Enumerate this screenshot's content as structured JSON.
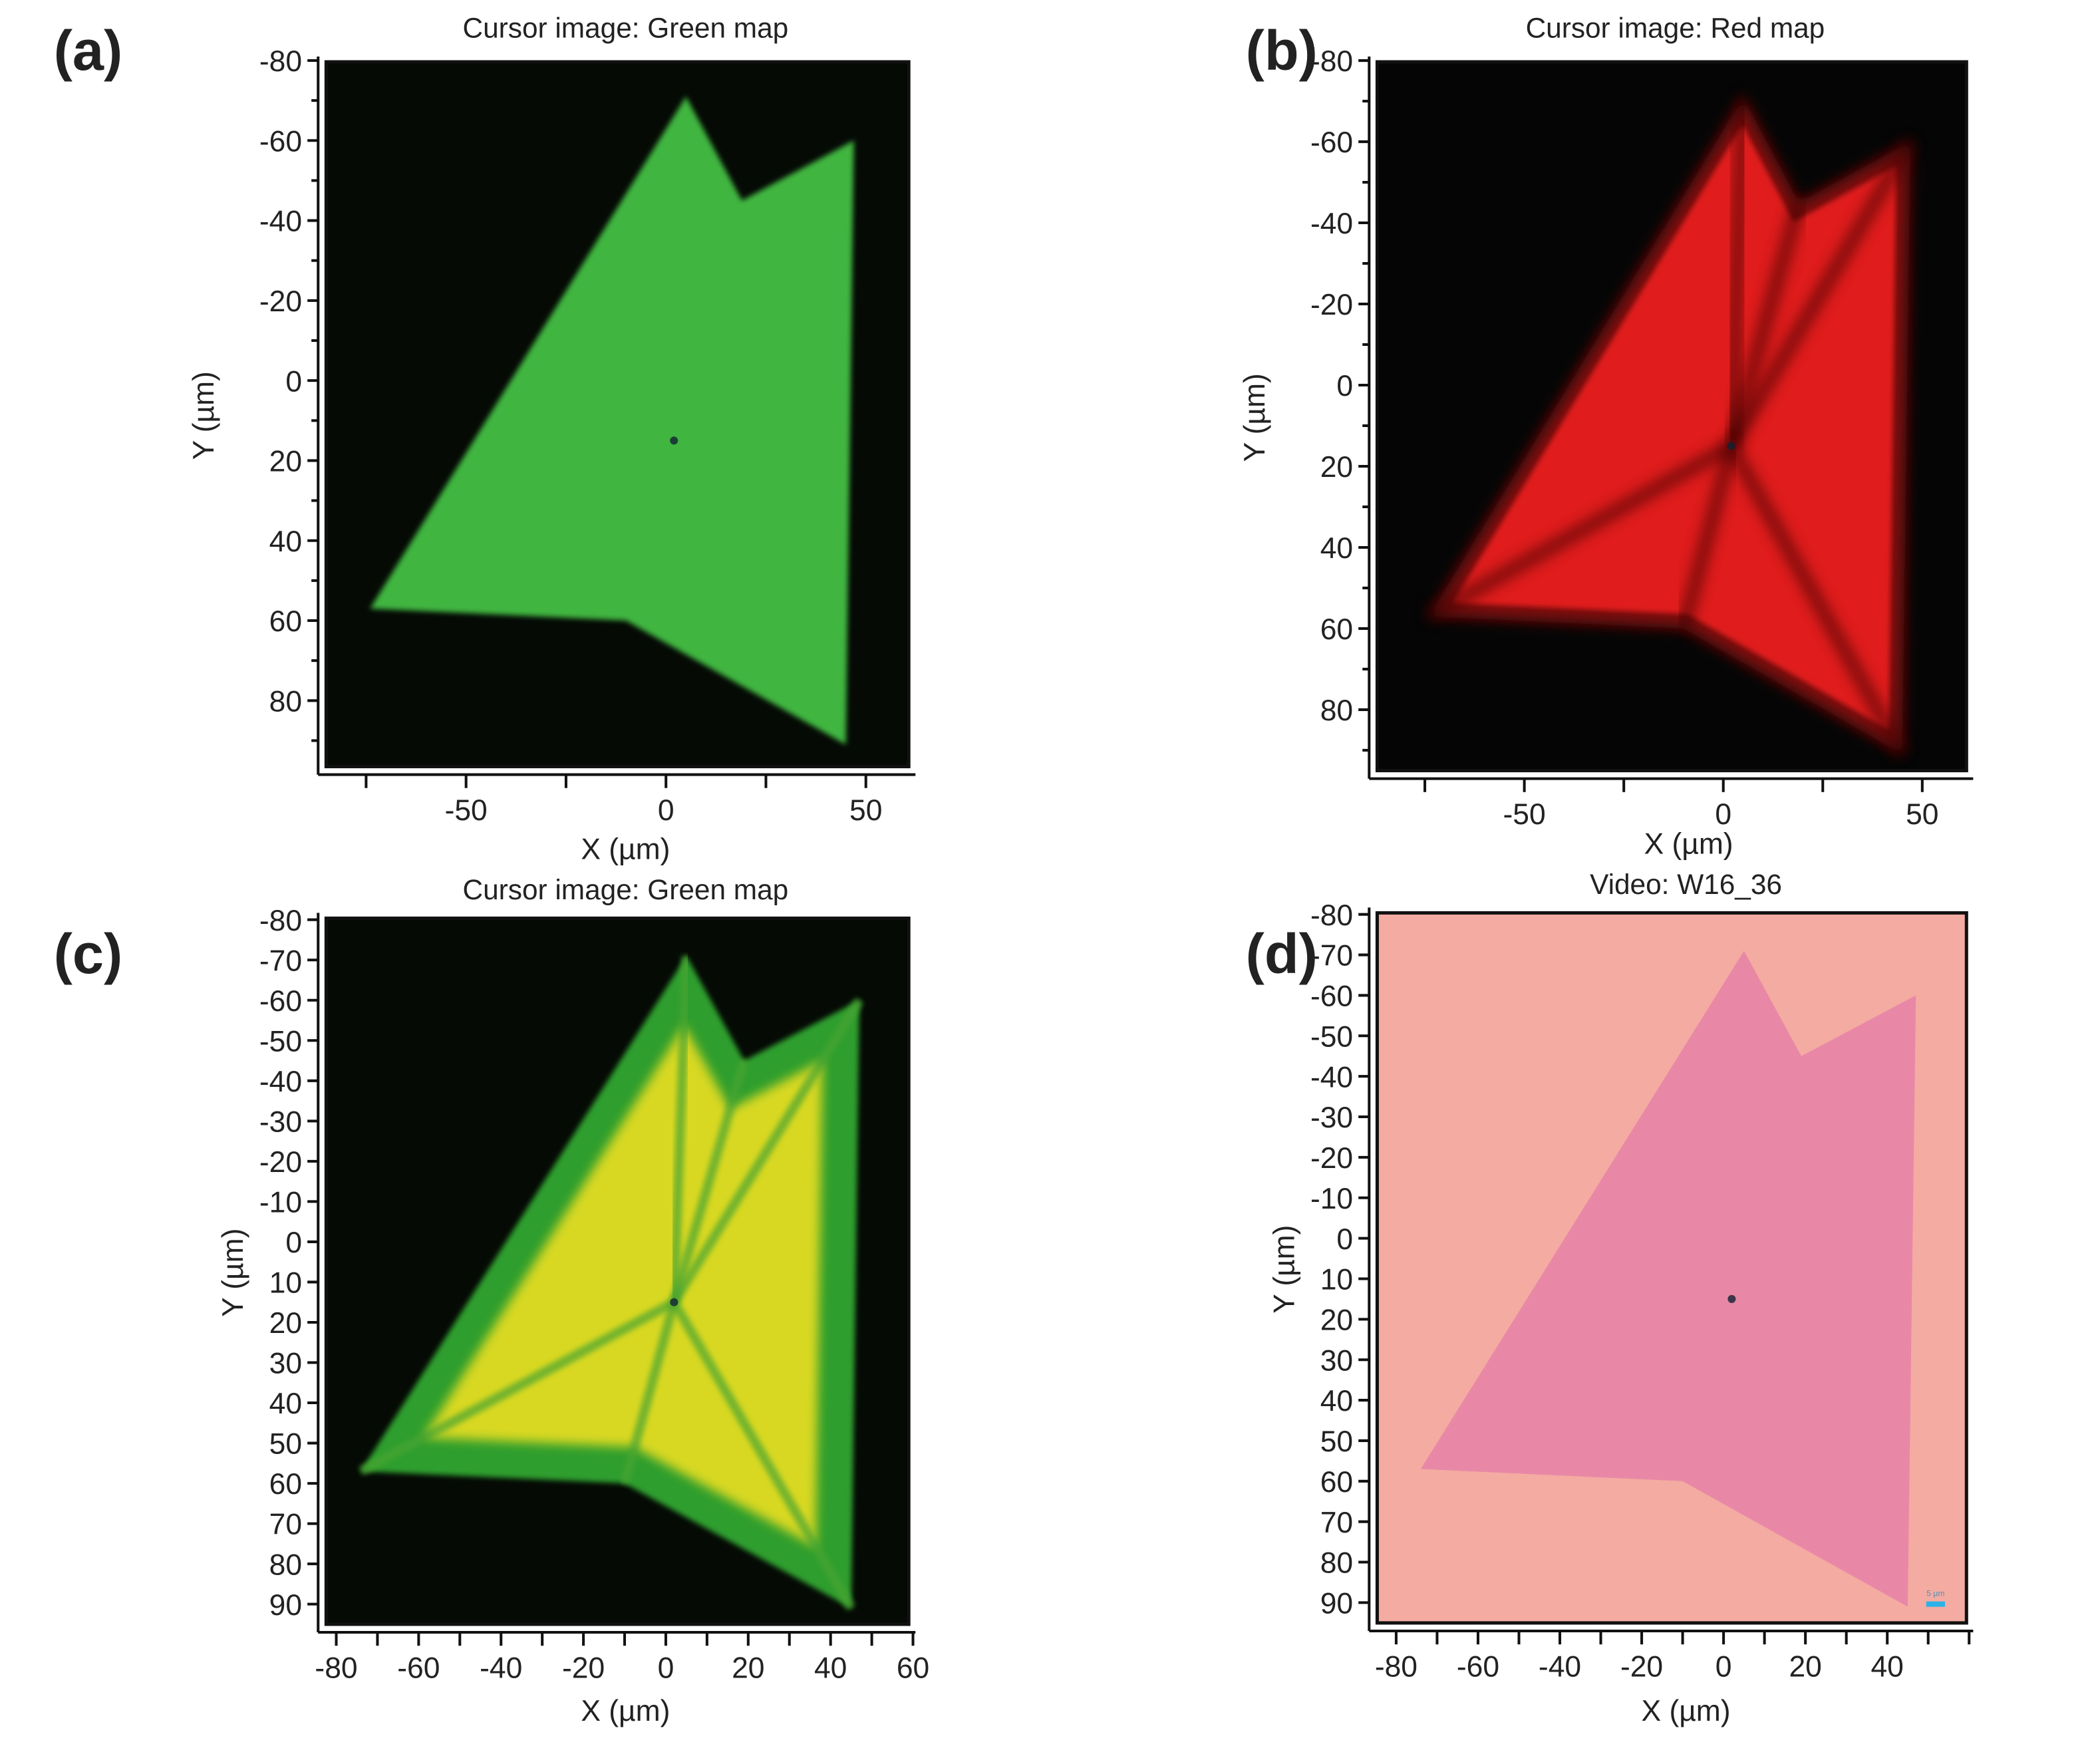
{
  "chart_data": [
    {
      "id": "a",
      "type": "image-map",
      "panel_label": "(a)",
      "title": "Cursor image: Green map",
      "xlabel": "X (µm)",
      "ylabel": "Y (µm)",
      "xlim": [
        -87,
        62.4
      ],
      "ylim": [
        -81,
        98.5
      ],
      "xticks_major": [
        -50,
        0,
        50
      ],
      "xticks_minor_step": 25,
      "yticks_major": [
        -80,
        -60,
        -40,
        -20,
        0,
        20,
        40,
        60,
        80
      ],
      "yticks_minor_step": 10,
      "style": "green",
      "background": "#050a05",
      "fill": "#3fb53f"
    },
    {
      "id": "b",
      "type": "image-map",
      "panel_label": "(b)",
      "title": "Cursor image: Red map",
      "xlabel": "X (µm)",
      "ylabel": "Y (µm)",
      "xlim": [
        -89,
        62.8
      ],
      "ylim": [
        -81,
        97
      ],
      "xticks_major": [
        -50,
        0,
        50
      ],
      "xticks_minor_step": 25,
      "yticks_major": [
        -80,
        -60,
        -40,
        -20,
        0,
        20,
        40,
        60,
        80
      ],
      "yticks_minor_step": 10,
      "style": "red",
      "background": "#050505",
      "fill": "#e01c1c"
    },
    {
      "id": "c",
      "type": "image-map",
      "panel_label": "(c)",
      "title": "Cursor image: Green map",
      "xlabel": "X (µm)",
      "ylabel": "Y (µm)",
      "xlim": [
        -84.4,
        60.6
      ],
      "ylim": [
        -81.7,
        97
      ],
      "xticks_major": [
        -80,
        -60,
        -40,
        -20,
        0,
        20,
        40,
        60
      ],
      "xticks_minor_step": 10,
      "yticks_major": [
        -80,
        -70,
        -60,
        -50,
        -40,
        -30,
        -20,
        -10,
        0,
        10,
        20,
        30,
        40,
        50,
        60,
        70,
        80,
        90
      ],
      "yticks_minor_step": 10,
      "style": "greenyellow",
      "background": "#050a05",
      "fill": "#2e9e2e"
    },
    {
      "id": "d",
      "type": "image-map",
      "panel_label": "(d)",
      "title": "Video: W16_36",
      "xlabel": "X (µm)",
      "ylabel": "Y (µm)",
      "xlim": [
        -86.6,
        61
      ],
      "ylim": [
        -81.7,
        97
      ],
      "xticks_major": [
        -80,
        -60,
        -40,
        -20,
        0,
        20,
        40
      ],
      "xticks_minor_step": 10,
      "yticks_major": [
        -80,
        -70,
        -60,
        -50,
        -40,
        -30,
        -20,
        -10,
        0,
        10,
        20,
        30,
        40,
        50,
        60,
        70,
        80,
        90
      ],
      "yticks_minor_step": 10,
      "style": "optical",
      "background": "#f4aba2",
      "fill": "#e888a6",
      "scale_bar": {
        "label": "5 µm",
        "length_um": 5,
        "color": "#2bb3e8"
      }
    }
  ],
  "flake_outline_um": [
    [
      5,
      -71
    ],
    [
      19,
      -45
    ],
    [
      47,
      -60
    ],
    [
      45,
      91
    ],
    [
      -10,
      60
    ],
    [
      -74,
      57
    ]
  ],
  "flake_center_um": [
    2,
    15
  ]
}
